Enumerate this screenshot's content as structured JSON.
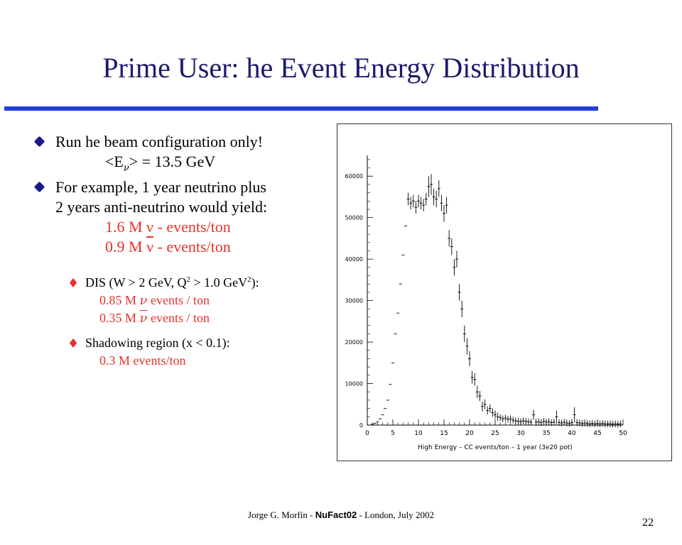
{
  "title": "Prime User: he Event Energy Distribution",
  "bullets": {
    "b1": {
      "line1": "Run he beam configuration only!",
      "mean_prefix": "<E",
      "mean_sub": "ν",
      "mean_suffix": "> = 13.5 GeV"
    },
    "b2": {
      "line1": "For example, 1 year neutrino plus",
      "line2": "2 years anti-neutrino would yield:",
      "yield1": "1.6 M  ν - events/ton",
      "yield2_pre": "0.9 M  ",
      "yield2_nu": "ν",
      "yield2_post": " - events/ton"
    },
    "sub1": {
      "text_pre": "DIS (W > 2 GeV, Q",
      "sup1": "2",
      "text_mid": " > 1.0 GeV",
      "sup2": "2",
      "text_post": "):",
      "line2_pre": "0.85 M ",
      "line2_nu": "ν",
      "line2_post": "   events / ton",
      "line3_pre": "0.35 M ",
      "line3_nu": "ν",
      "line3_post": "  events / ton"
    },
    "sub2": {
      "text": "Shadowing region (x < 0.1):",
      "line2": "0.3 M events/ton"
    }
  },
  "footer": {
    "author": "Jorge G. Morfín - ",
    "conf": "NuFact02",
    "rest": " - London, July 2002",
    "page": "22"
  },
  "colors": {
    "title": "#1a1a6e",
    "rule": "#1f3fd6",
    "highlight": "#e8312a"
  },
  "chart_data": {
    "type": "scatter",
    "xlabel": "High Energy  – CC events/ton – 1 year (3e20 pot)",
    "xlim": [
      0,
      50
    ],
    "ylim": [
      0,
      65000
    ],
    "xticks": [
      "0",
      "5",
      "10",
      "15",
      "20",
      "25",
      "30",
      "35",
      "40",
      "45",
      "50"
    ],
    "yticks": [
      "0",
      "10000",
      "20000",
      "30000",
      "40000",
      "50000",
      "60000"
    ],
    "grid": false,
    "x": [
      0.5,
      1.0,
      1.5,
      2.0,
      2.5,
      3.0,
      3.5,
      4.0,
      4.5,
      5.0,
      5.5,
      6.0,
      6.5,
      7.0,
      7.5,
      8.0,
      8.5,
      9.0,
      9.5,
      10.0,
      10.5,
      11.0,
      11.5,
      12.0,
      12.5,
      13.0,
      13.5,
      14.0,
      14.5,
      15.0,
      15.5,
      16.0,
      16.5,
      17.0,
      17.5,
      18.0,
      18.5,
      19.0,
      19.5,
      20.0,
      20.5,
      21.0,
      21.5,
      22.0,
      22.5,
      23.0,
      23.5,
      24.0,
      24.5,
      25.0,
      25.5,
      26.0,
      26.5,
      27.0,
      27.5,
      28.0,
      28.5,
      29.0,
      29.5,
      30.0,
      30.5,
      31.0,
      31.5,
      32.0,
      32.5,
      33.0,
      33.5,
      34.0,
      34.5,
      35.0,
      35.5,
      36.0,
      36.5,
      37.0,
      37.5,
      38.0,
      38.5,
      39.0,
      39.5,
      40.0,
      40.5,
      41.0,
      41.5,
      42.0,
      42.5,
      43.0,
      43.5,
      44.0,
      44.5,
      45.0,
      45.5,
      46.0,
      46.5,
      47.0,
      47.5,
      48.0,
      48.5,
      49.0,
      49.5
    ],
    "y": [
      0,
      200,
      400,
      800,
      1500,
      2500,
      4000,
      6000,
      9800,
      15000,
      22000,
      27000,
      34000,
      41000,
      48000,
      54500,
      53500,
      54000,
      52500,
      54000,
      53500,
      53000,
      54500,
      57500,
      58000,
      55000,
      54500,
      57000,
      53500,
      51000,
      53000,
      45000,
      43000,
      38000,
      40000,
      32000,
      28000,
      22000,
      19000,
      16000,
      11500,
      11000,
      8000,
      7000,
      4500,
      5000,
      3500,
      4000,
      3000,
      2500,
      2000,
      1800,
      1500,
      1700,
      1400,
      1500,
      1200,
      1000,
      900,
      800,
      1000,
      900,
      800,
      700,
      2500,
      700,
      800,
      600,
      900,
      700,
      800,
      600,
      700,
      2000,
      600,
      500,
      700,
      500,
      400,
      600,
      2500,
      600,
      500,
      400,
      500,
      400,
      300,
      400,
      300,
      400,
      300,
      400,
      300,
      300,
      300,
      200,
      300,
      200,
      300
    ],
    "err": [
      0,
      0,
      0,
      0,
      0,
      0,
      0,
      0,
      0,
      0,
      0,
      0,
      0,
      0,
      0,
      1500,
      1500,
      1500,
      1500,
      1500,
      1500,
      1500,
      1500,
      2500,
      2500,
      2000,
      2000,
      2000,
      2000,
      2000,
      2000,
      2000,
      2000,
      2000,
      2000,
      2000,
      2000,
      2000,
      2000,
      1800,
      1500,
      1500,
      1500,
      1200,
      1200,
      1200,
      1000,
      1000,
      1000,
      1000,
      1000,
      800,
      800,
      800,
      800,
      800,
      800,
      800,
      800,
      800,
      800,
      800,
      800,
      800,
      1200,
      800,
      800,
      800,
      800,
      800,
      800,
      800,
      800,
      1500,
      800,
      800,
      800,
      800,
      800,
      800,
      1800,
      800,
      800,
      800,
      800,
      800,
      800,
      800,
      800,
      800,
      800,
      800,
      800,
      800,
      800,
      800,
      800,
      800,
      800
    ]
  }
}
